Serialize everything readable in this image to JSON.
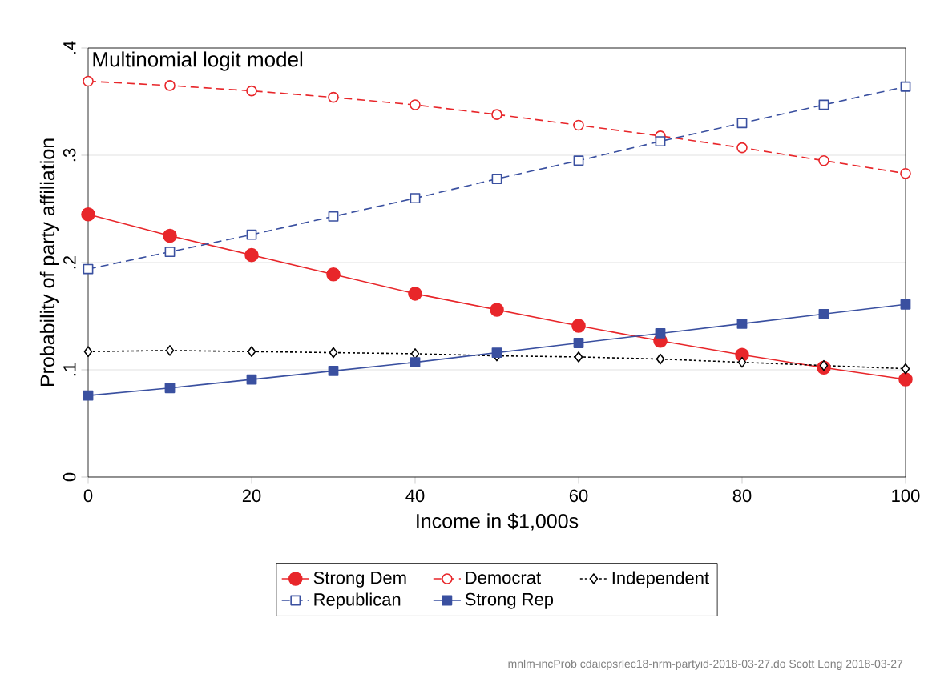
{
  "chart_data": {
    "type": "line",
    "title": "Multinomial logit model",
    "xlabel": "Income in $1,000s",
    "ylabel": "Probability of party affiliation",
    "x": [
      0,
      10,
      20,
      30,
      40,
      50,
      60,
      70,
      80,
      90,
      100
    ],
    "series": [
      {
        "name": "Strong Dem",
        "color": "#e8262a",
        "marker": "circle",
        "line_style": "solid",
        "values": [
          0.245,
          0.225,
          0.207,
          0.189,
          0.171,
          0.156,
          0.141,
          0.127,
          0.114,
          0.102,
          0.091
        ]
      },
      {
        "name": "Democrat",
        "color": "#e8262a",
        "marker": "circle",
        "line_style": "dashed",
        "values": [
          0.369,
          0.365,
          0.36,
          0.354,
          0.347,
          0.338,
          0.328,
          0.318,
          0.307,
          0.295,
          0.283
        ]
      },
      {
        "name": "Independent",
        "color": "#000000",
        "marker": "diamond",
        "line_style": "dotted",
        "values": [
          0.117,
          0.118,
          0.117,
          0.116,
          0.115,
          0.113,
          0.112,
          0.11,
          0.107,
          0.104,
          0.101
        ]
      },
      {
        "name": "Republican",
        "color": "#3a50a0",
        "marker": "square",
        "line_style": "dashed",
        "values": [
          0.194,
          0.21,
          0.226,
          0.243,
          0.26,
          0.278,
          0.295,
          0.313,
          0.33,
          0.347,
          0.364
        ]
      },
      {
        "name": "Strong Rep",
        "color": "#3a50a0",
        "marker": "square",
        "line_style": "solid",
        "values": [
          0.076,
          0.083,
          0.091,
          0.099,
          0.107,
          0.116,
          0.125,
          0.134,
          0.143,
          0.152,
          0.161
        ]
      }
    ],
    "xlim": [
      0,
      100
    ],
    "xticks": [
      0,
      20,
      40,
      60,
      80,
      100
    ],
    "ylim": [
      0,
      0.4
    ],
    "yticks": [
      {
        "value": 0,
        "label": "0"
      },
      {
        "value": 0.1,
        "label": ".1"
      },
      {
        "value": 0.2,
        "label": ".2"
      },
      {
        "value": 0.3,
        "label": ".3"
      },
      {
        "value": 0.4,
        "label": ".4"
      }
    ],
    "grid": "y",
    "legend": "bottom",
    "annotations": [
      "mnlm-incProb cdaicpsrlec18-nrm-partyid-2018-03-27.do Scott Long 2018-03-27"
    ]
  }
}
